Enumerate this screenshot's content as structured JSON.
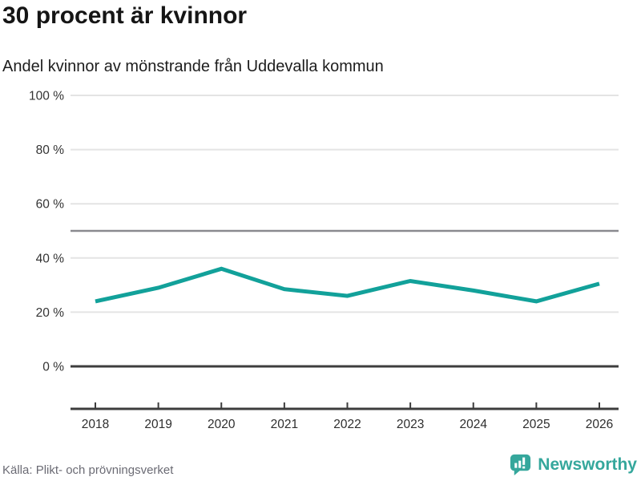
{
  "header": {
    "title": "30 procent är kvinnor",
    "subtitle": "Andel kvinnor av mönstrande från Uddevalla kommun"
  },
  "chart_data": {
    "type": "line",
    "title": "30 procent är kvinnor",
    "subtitle": "Andel kvinnor av mönstrande från Uddevalla kommun",
    "categories": [
      "2018",
      "2019",
      "2020",
      "2021",
      "2022",
      "2023",
      "2024",
      "2025",
      "2026"
    ],
    "series": [
      {
        "name": "Andel kvinnor av mönstrande",
        "values": [
          24,
          29,
          36,
          28.5,
          26,
          31.5,
          28,
          24,
          30.5
        ]
      }
    ],
    "unit": "%",
    "ylim": [
      0,
      100
    ],
    "yticks": [
      {
        "value": 0,
        "label": "0 %"
      },
      {
        "value": 20,
        "label": "20 %"
      },
      {
        "value": 40,
        "label": "40 %"
      },
      {
        "value": 60,
        "label": "60 %"
      },
      {
        "value": 80,
        "label": "80 %"
      },
      {
        "value": 100,
        "label": "100 %"
      }
    ],
    "reference_line": {
      "value": 50
    },
    "grid_on": true,
    "legend": "none",
    "line_color": "#12a19a",
    "grid_color": "#e4e4e4",
    "reference_line_color": "#8a8a8f",
    "axis_color": "#3d3d3d",
    "tick_label_color": "#333333"
  },
  "footer": {
    "source": "Källa: Plikt- och prövningsverket",
    "brand": "Newsworthy",
    "brand_color": "#35a79c"
  }
}
